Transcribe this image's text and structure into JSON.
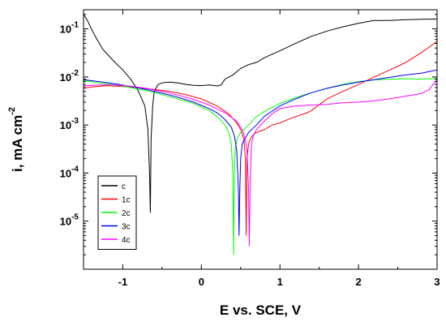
{
  "chart_data": {
    "type": "line",
    "xlabel": "E vs. SCE, V",
    "ylabel": "i, mA cm",
    "ylabel_superscript": "-2",
    "xlim": [
      -1.5,
      3
    ],
    "ylim": [
      1e-06,
      0.25
    ],
    "yscale": "log",
    "x_ticks": [
      -1,
      0,
      1,
      2,
      3
    ],
    "x_tick_labels": [
      "-1",
      "0",
      "1",
      "2",
      "3"
    ],
    "y_ticks": [
      1e-05,
      0.0001,
      0.001,
      0.01,
      0.1
    ],
    "y_tick_labels": [
      {
        "base": "10",
        "exp": "-5"
      },
      {
        "base": "10",
        "exp": "-4"
      },
      {
        "base": "10",
        "exp": "-3"
      },
      {
        "base": "10",
        "exp": "-2"
      },
      {
        "base": "10",
        "exp": "-1"
      }
    ],
    "grid": false,
    "legend_position": "bottom-left",
    "series": [
      {
        "name": "c",
        "color": "#000000",
        "x": [
          -1.5,
          -1.45,
          -1.4,
          -1.35,
          -1.3,
          -1.25,
          -1.2,
          -1.1,
          -1.0,
          -0.9,
          -0.8,
          -0.72,
          -0.68,
          -0.66,
          -0.65,
          -0.64,
          -0.62,
          -0.6,
          -0.55,
          -0.5,
          -0.45,
          -0.4,
          -0.3,
          -0.2,
          -0.1,
          0.0,
          0.1,
          0.2,
          0.25,
          0.3,
          0.4,
          0.5,
          0.6,
          0.7,
          0.8,
          1.0,
          1.2,
          1.4,
          1.6,
          1.8,
          2.0,
          2.1,
          2.2,
          2.4,
          2.6,
          2.8,
          3.0
        ],
        "y": [
          0.2,
          0.15,
          0.1,
          0.07,
          0.05,
          0.037,
          0.03,
          0.02,
          0.014,
          0.009,
          0.005,
          0.0025,
          0.0008,
          0.0001,
          1.5e-05,
          0.0005,
          0.0025,
          0.005,
          0.007,
          0.0075,
          0.0077,
          0.0078,
          0.0075,
          0.007,
          0.0067,
          0.0066,
          0.0068,
          0.0065,
          0.0068,
          0.009,
          0.011,
          0.015,
          0.018,
          0.02,
          0.025,
          0.035,
          0.05,
          0.07,
          0.09,
          0.11,
          0.13,
          0.14,
          0.15,
          0.15,
          0.155,
          0.158,
          0.16
        ]
      },
      {
        "name": "1c",
        "color": "#ff0000",
        "x": [
          -1.5,
          -1.4,
          -1.2,
          -1.0,
          -0.8,
          -0.6,
          -0.4,
          -0.2,
          0.0,
          0.2,
          0.35,
          0.45,
          0.5,
          0.54,
          0.56,
          0.57,
          0.58,
          0.6,
          0.62,
          0.65,
          0.7,
          0.8,
          0.9,
          1.0,
          1.1,
          1.2,
          1.3,
          1.35,
          1.4,
          1.6,
          1.8,
          2.0,
          2.2,
          2.4,
          2.6,
          2.8,
          3.0
        ],
        "y": [
          0.0058,
          0.0062,
          0.0066,
          0.0063,
          0.006,
          0.0055,
          0.005,
          0.0043,
          0.0035,
          0.0025,
          0.0017,
          0.0011,
          0.0008,
          0.0005,
          0.0002,
          5e-06,
          0.0002,
          0.0004,
          0.0005,
          0.0006,
          0.0007,
          0.0008,
          0.001,
          0.0011,
          0.0013,
          0.0015,
          0.0017,
          0.0018,
          0.002,
          0.0035,
          0.005,
          0.007,
          0.01,
          0.014,
          0.02,
          0.032,
          0.055
        ]
      },
      {
        "name": "2c",
        "color": "#00ff00",
        "x": [
          -1.5,
          -1.3,
          -1.1,
          -0.9,
          -0.7,
          -0.5,
          -0.3,
          -0.1,
          0.1,
          0.2,
          0.3,
          0.35,
          0.38,
          0.4,
          0.41,
          0.42,
          0.43,
          0.45,
          0.5,
          0.6,
          0.7,
          0.8,
          1.0,
          1.2,
          1.4,
          1.6,
          1.8,
          2.0,
          2.2,
          2.4,
          2.6,
          2.8,
          3.0
        ],
        "y": [
          0.0085,
          0.0075,
          0.0068,
          0.006,
          0.0052,
          0.0043,
          0.0035,
          0.0028,
          0.002,
          0.0015,
          0.001,
          0.0007,
          0.0004,
          0.0001,
          2e-06,
          0.0001,
          0.0003,
          0.0005,
          0.0007,
          0.001,
          0.0015,
          0.0019,
          0.0028,
          0.0037,
          0.0047,
          0.0058,
          0.007,
          0.008,
          0.0087,
          0.009,
          0.0092,
          0.009,
          0.0093
        ]
      },
      {
        "name": "3c",
        "color": "#0000ff",
        "x": [
          -1.5,
          -1.3,
          -1.1,
          -0.9,
          -0.7,
          -0.5,
          -0.3,
          -0.1,
          0.1,
          0.2,
          0.3,
          0.38,
          0.42,
          0.45,
          0.47,
          0.48,
          0.49,
          0.5,
          0.52,
          0.55,
          0.6,
          0.7,
          0.8,
          1.0,
          1.2,
          1.4,
          1.6,
          1.8,
          2.0,
          2.2,
          2.4,
          2.6,
          2.8,
          3.0
        ],
        "y": [
          0.0088,
          0.008,
          0.0072,
          0.0063,
          0.0055,
          0.0046,
          0.0038,
          0.003,
          0.0022,
          0.0018,
          0.0013,
          0.0009,
          0.0006,
          0.0003,
          5e-05,
          5e-06,
          5e-05,
          0.0002,
          0.0004,
          0.0005,
          0.0007,
          0.001,
          0.0015,
          0.0025,
          0.0035,
          0.0047,
          0.0058,
          0.0068,
          0.0078,
          0.0088,
          0.0098,
          0.011,
          0.012,
          0.014
        ]
      },
      {
        "name": "4c",
        "color": "#ff00ff",
        "x": [
          -1.5,
          -1.3,
          -1.1,
          -0.9,
          -0.7,
          -0.5,
          -0.3,
          -0.1,
          0.1,
          0.3,
          0.45,
          0.52,
          0.56,
          0.58,
          0.6,
          0.61,
          0.62,
          0.63,
          0.64,
          0.66,
          0.7,
          0.8,
          0.9,
          1.0,
          1.2,
          1.4,
          1.6,
          1.8,
          2.0,
          2.2,
          2.4,
          2.6,
          2.8,
          2.9,
          3.0
        ],
        "y": [
          0.0065,
          0.0068,
          0.0068,
          0.0064,
          0.0058,
          0.005,
          0.0042,
          0.0034,
          0.0026,
          0.0018,
          0.0012,
          0.0008,
          0.0005,
          0.0003,
          5e-05,
          3e-06,
          5e-05,
          0.0002,
          0.0004,
          0.0006,
          0.0008,
          0.0012,
          0.0017,
          0.0022,
          0.0025,
          0.0026,
          0.0027,
          0.0029,
          0.003,
          0.0032,
          0.0035,
          0.004,
          0.0045,
          0.0055,
          0.009
        ]
      }
    ]
  }
}
